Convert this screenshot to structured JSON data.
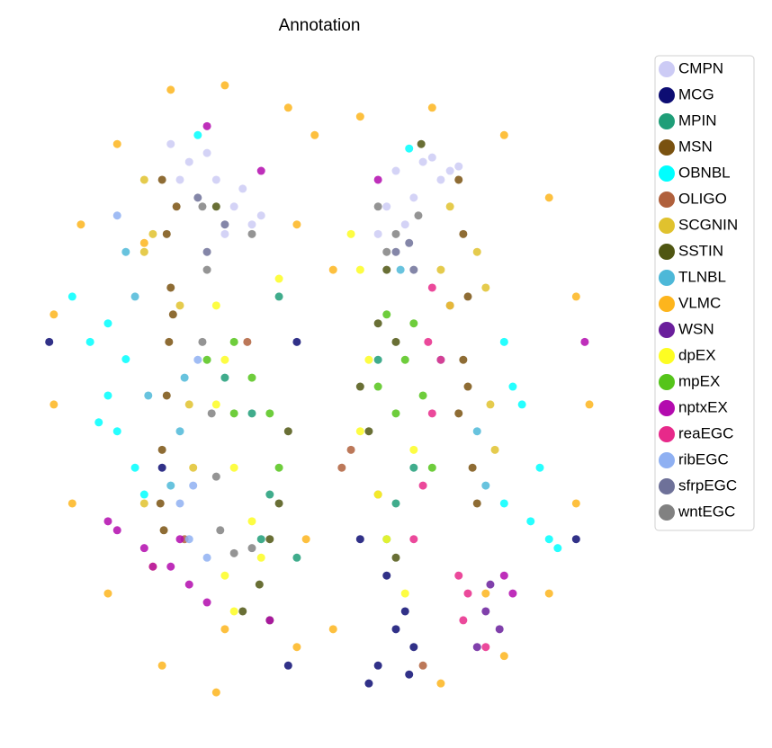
{
  "chart_data": {
    "type": "scatter",
    "title": "Annotation",
    "legend": "right",
    "xlim": [
      0,
      100
    ],
    "ylim": [
      0,
      100
    ],
    "series": [
      {
        "name": "CMPN",
        "color": "#cccbf5",
        "x": [
          23.4,
          26.6,
          31.3,
          34.4,
          37.5,
          29.7,
          35.9,
          39.1,
          25.0,
          32.8,
          62.5,
          67.2,
          71.9,
          60.9,
          65.6,
          70.3,
          59.4,
          64.1,
          68.8,
          73.4
        ],
        "y": [
          88.7,
          85.9,
          83.1,
          78.9,
          76.1,
          87.3,
          81.7,
          77.5,
          83.1,
          74.6,
          84.5,
          85.9,
          84.5,
          78.9,
          80.3,
          83.1,
          74.6,
          76.1,
          86.6,
          85.2
        ]
      },
      {
        "name": "MCG",
        "color": "#0d0d73",
        "x": [
          60.9,
          64.1,
          65.6,
          62.5,
          59.4,
          57.8,
          64.8,
          56.3,
          45.3,
          21.9,
          2.3,
          93.8,
          43.8
        ],
        "y": [
          21.1,
          15.5,
          9.9,
          12.7,
          7.0,
          4.2,
          5.6,
          26.8,
          57.7,
          38.0,
          57.7,
          26.8,
          7.0
        ]
      },
      {
        "name": "MPIN",
        "color": "#1f9e78",
        "x": [
          42.2,
          37.5,
          40.6,
          62.5,
          60.9,
          45.3,
          32.8,
          65.6,
          59.4,
          39.1
        ],
        "y": [
          64.8,
          46.5,
          33.8,
          32.4,
          26.8,
          23.9,
          52.1,
          38.0,
          54.9,
          26.8
        ]
      },
      {
        "name": "MSN",
        "color": "#7a5210",
        "x": [
          21.9,
          22.7,
          23.4,
          23.1,
          22.7,
          21.9,
          21.6,
          22.2,
          24.4,
          23.8,
          73.4,
          74.2,
          75.0,
          74.2,
          73.4,
          75.8,
          76.6,
          75.0
        ],
        "y": [
          83.1,
          74.6,
          66.2,
          57.7,
          49.3,
          40.8,
          32.4,
          28.2,
          78.9,
          62.0,
          83.1,
          74.6,
          64.8,
          54.9,
          46.5,
          38.0,
          32.4,
          50.7
        ]
      },
      {
        "name": "OBNBL",
        "color": "#00ffff",
        "x": [
          6.3,
          9.4,
          12.5,
          14.1,
          17.2,
          10.9,
          15.6,
          18.8,
          12.5,
          81.3,
          84.4,
          87.5,
          89.1,
          85.9,
          81.3,
          90.6,
          82.8,
          64.8,
          28.1
        ],
        "y": [
          64.8,
          57.7,
          49.3,
          43.7,
          38.0,
          45.1,
          55.0,
          33.8,
          60.6,
          57.7,
          47.9,
          38.0,
          26.8,
          29.6,
          32.4,
          25.4,
          50.7,
          88.0,
          90.1
        ]
      },
      {
        "name": "OLIGO",
        "color": "#b0603c",
        "x": [
          25.8,
          53.1,
          54.7,
          59.4,
          36.7,
          67.2
        ],
        "y": [
          26.8,
          38.0,
          40.8,
          33.8,
          57.7,
          7.0
        ]
      },
      {
        "name": "SCGNIN",
        "color": "#e0c22e",
        "x": [
          18.8,
          20.3,
          18.8,
          25.0,
          26.6,
          27.3,
          18.8,
          71.9,
          76.6,
          78.1,
          70.3,
          78.9,
          79.7
        ],
        "y": [
          83.1,
          74.6,
          71.8,
          63.4,
          47.9,
          38.0,
          32.4,
          78.9,
          71.8,
          66.2,
          69.0,
          47.9,
          40.8
        ]
      },
      {
        "name": "SSTIN",
        "color": "#4f5612",
        "x": [
          31.3,
          40.6,
          38.8,
          42.2,
          43.8,
          60.9,
          59.4,
          62.5,
          56.3,
          57.8,
          62.5,
          35.9,
          40.6,
          66.9
        ],
        "y": [
          78.9,
          26.8,
          19.7,
          32.4,
          43.7,
          69.0,
          60.6,
          57.7,
          50.7,
          43.7,
          23.9,
          15.5,
          14.1,
          88.7
        ]
      },
      {
        "name": "TLNBL",
        "color": "#4db8d8",
        "x": [
          15.6,
          17.2,
          25.8,
          25.0,
          23.4,
          19.5,
          71.9,
          70.3,
          76.6,
          78.1,
          63.3
        ],
        "y": [
          71.8,
          64.8,
          52.1,
          43.7,
          35.2,
          49.3,
          63.4,
          54.9,
          43.7,
          35.2,
          69.0
        ]
      },
      {
        "name": "VLMC",
        "color": "#fdb51d",
        "x": [
          23.4,
          32.8,
          43.8,
          14.1,
          7.8,
          3.1,
          3.1,
          6.3,
          12.5,
          21.9,
          31.3,
          45.3,
          46.9,
          45.3,
          48.4,
          56.3,
          68.8,
          81.3,
          89.1,
          93.8,
          96.1,
          93.8,
          89.1,
          81.3,
          70.3,
          51.6,
          51.6,
          71.9,
          20.3,
          32.8,
          78.1,
          18.8
        ],
        "y": [
          97.2,
          97.9,
          94.4,
          88.7,
          76.1,
          62.0,
          47.9,
          32.4,
          18.3,
          7.0,
          2.8,
          9.9,
          26.8,
          76.1,
          90.1,
          93.0,
          94.4,
          90.1,
          80.3,
          64.8,
          47.9,
          32.4,
          18.3,
          8.5,
          4.2,
          12.7,
          69.0,
          63.4,
          22.5,
          12.7,
          18.3,
          73.2
        ]
      },
      {
        "name": "WSN",
        "color": "#6a1e9c",
        "x": [
          78.1,
          80.5,
          76.6,
          78.9
        ],
        "y": [
          15.5,
          12.7,
          9.9,
          19.7
        ]
      },
      {
        "name": "dpEX",
        "color": "#fdfd22",
        "x": [
          31.3,
          32.8,
          31.3,
          34.4,
          37.5,
          32.8,
          34.4,
          39.1,
          42.2,
          56.3,
          57.8,
          56.3,
          59.4,
          60.9,
          64.1,
          65.6,
          54.7
        ],
        "y": [
          63.4,
          54.9,
          47.9,
          38.0,
          29.6,
          21.1,
          15.5,
          23.9,
          67.6,
          69.0,
          54.9,
          43.7,
          33.8,
          26.8,
          18.3,
          40.8,
          74.6
        ]
      },
      {
        "name": "mpEX",
        "color": "#55c41a",
        "x": [
          34.4,
          37.5,
          40.6,
          34.4,
          42.2,
          29.7,
          60.9,
          64.1,
          67.2,
          62.5,
          65.6,
          68.8,
          59.4
        ],
        "y": [
          57.7,
          52.1,
          46.5,
          46.5,
          38.0,
          54.9,
          62.0,
          54.9,
          49.3,
          46.5,
          60.6,
          38.0,
          50.7
        ]
      },
      {
        "name": "nptxEX",
        "color": "#b30aae",
        "x": [
          14.1,
          18.8,
          23.4,
          26.6,
          29.7,
          20.3,
          25.0,
          12.5,
          81.3,
          82.8,
          39.1,
          29.7,
          59.4,
          95.3,
          40.6
        ],
        "y": [
          28.2,
          25.4,
          22.5,
          19.7,
          16.9,
          22.5,
          26.8,
          29.6,
          21.1,
          18.3,
          84.5,
          91.5,
          83.1,
          57.7,
          14.1
        ]
      },
      {
        "name": "reaEGC",
        "color": "#e7298a",
        "x": [
          68.8,
          70.3,
          68.8,
          67.2,
          65.6,
          73.4,
          74.2,
          78.1,
          75.0,
          68.1
        ],
        "y": [
          66.2,
          54.9,
          46.5,
          35.2,
          26.8,
          21.1,
          14.1,
          9.9,
          18.3,
          57.7
        ]
      },
      {
        "name": "ribEGC",
        "color": "#8fb0f2",
        "x": [
          25.0,
          26.6,
          29.7,
          14.1,
          27.3,
          28.1
        ],
        "y": [
          32.4,
          26.8,
          23.9,
          77.5,
          35.2,
          54.9
        ]
      },
      {
        "name": "sfrpEGC",
        "color": "#6e7199",
        "x": [
          28.1,
          29.7,
          32.8,
          62.5,
          65.6,
          64.8
        ],
        "y": [
          80.3,
          71.8,
          76.1,
          71.8,
          69.0,
          73.2
        ]
      },
      {
        "name": "wntEGC",
        "color": "#818181",
        "x": [
          28.9,
          29.7,
          28.9,
          30.5,
          31.3,
          32.0,
          34.4,
          37.5,
          37.5,
          59.4,
          62.5,
          66.4,
          60.9
        ],
        "y": [
          78.9,
          69.0,
          57.7,
          46.5,
          36.6,
          28.2,
          24.6,
          25.4,
          74.6,
          78.9,
          74.6,
          77.5,
          71.8
        ]
      }
    ]
  }
}
